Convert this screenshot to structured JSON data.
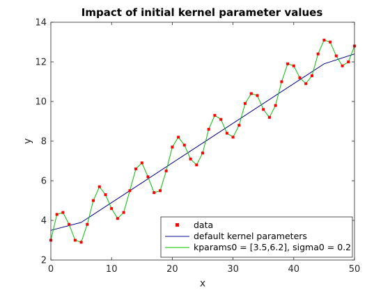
{
  "chart_data": {
    "type": "scatter",
    "title": "Impact of initial kernel parameter values",
    "xlabel": "x",
    "ylabel": "y",
    "xlim": [
      0,
      50
    ],
    "ylim": [
      2,
      14
    ],
    "xticks": [
      "0",
      "10",
      "20",
      "30",
      "40",
      "50"
    ],
    "yticks": [
      "2",
      "4",
      "6",
      "8",
      "10",
      "12",
      "14"
    ],
    "grid": false,
    "legend_position": "bottom-right",
    "series": [
      {
        "name": "data",
        "kind": "markers",
        "color": "#ff0000",
        "x": [
          0,
          1,
          2,
          3,
          4,
          5,
          6,
          7,
          8,
          9,
          10,
          11,
          12,
          13,
          14,
          15,
          16,
          17,
          18,
          19,
          20,
          21,
          22,
          23,
          24,
          25,
          26,
          27,
          28,
          29,
          30,
          31,
          32,
          33,
          34,
          35,
          36,
          37,
          38,
          39,
          40,
          41,
          42,
          43,
          44,
          45,
          46,
          47,
          48,
          49,
          50
        ],
        "values": [
          3.0,
          4.3,
          4.4,
          3.8,
          3.0,
          2.9,
          3.8,
          5.0,
          5.7,
          5.3,
          4.6,
          4.1,
          4.4,
          5.5,
          6.6,
          6.9,
          6.2,
          5.4,
          5.5,
          6.5,
          7.7,
          8.2,
          7.8,
          7.1,
          6.8,
          7.4,
          8.6,
          9.3,
          9.1,
          8.4,
          8.2,
          8.8,
          9.9,
          10.4,
          10.3,
          9.6,
          9.2,
          9.8,
          11.0,
          11.9,
          11.8,
          11.2,
          10.9,
          11.3,
          12.4,
          13.1,
          13.0,
          12.3,
          11.8,
          12.0,
          12.8
        ]
      },
      {
        "name": "default kernel parameters",
        "kind": "line",
        "color": "#00008b",
        "x": [
          0,
          5,
          10,
          15,
          20,
          25,
          30,
          35,
          40,
          45,
          50
        ],
        "values": [
          3.5,
          3.9,
          4.9,
          5.9,
          6.9,
          7.9,
          8.9,
          9.9,
          10.9,
          11.9,
          12.4
        ]
      },
      {
        "name": "kparams0 = [3.5,6.2], sigma0 = 0.2",
        "kind": "line",
        "color": "#00c000",
        "x": [
          0,
          1,
          2,
          3,
          4,
          5,
          6,
          7,
          8,
          9,
          10,
          11,
          12,
          13,
          14,
          15,
          16,
          17,
          18,
          19,
          20,
          21,
          22,
          23,
          24,
          25,
          26,
          27,
          28,
          29,
          30,
          31,
          32,
          33,
          34,
          35,
          36,
          37,
          38,
          39,
          40,
          41,
          42,
          43,
          44,
          45,
          46,
          47,
          48,
          49,
          50
        ],
        "values": [
          3.0,
          4.3,
          4.4,
          3.8,
          3.0,
          2.9,
          3.8,
          5.0,
          5.7,
          5.3,
          4.6,
          4.1,
          4.4,
          5.5,
          6.6,
          6.9,
          6.2,
          5.4,
          5.5,
          6.5,
          7.7,
          8.2,
          7.8,
          7.1,
          6.8,
          7.4,
          8.6,
          9.3,
          9.1,
          8.4,
          8.2,
          8.8,
          9.9,
          10.4,
          10.3,
          9.6,
          9.2,
          9.8,
          11.0,
          11.9,
          11.8,
          11.2,
          10.9,
          11.3,
          12.4,
          13.1,
          13.0,
          12.3,
          11.8,
          12.0,
          12.8
        ]
      }
    ]
  }
}
